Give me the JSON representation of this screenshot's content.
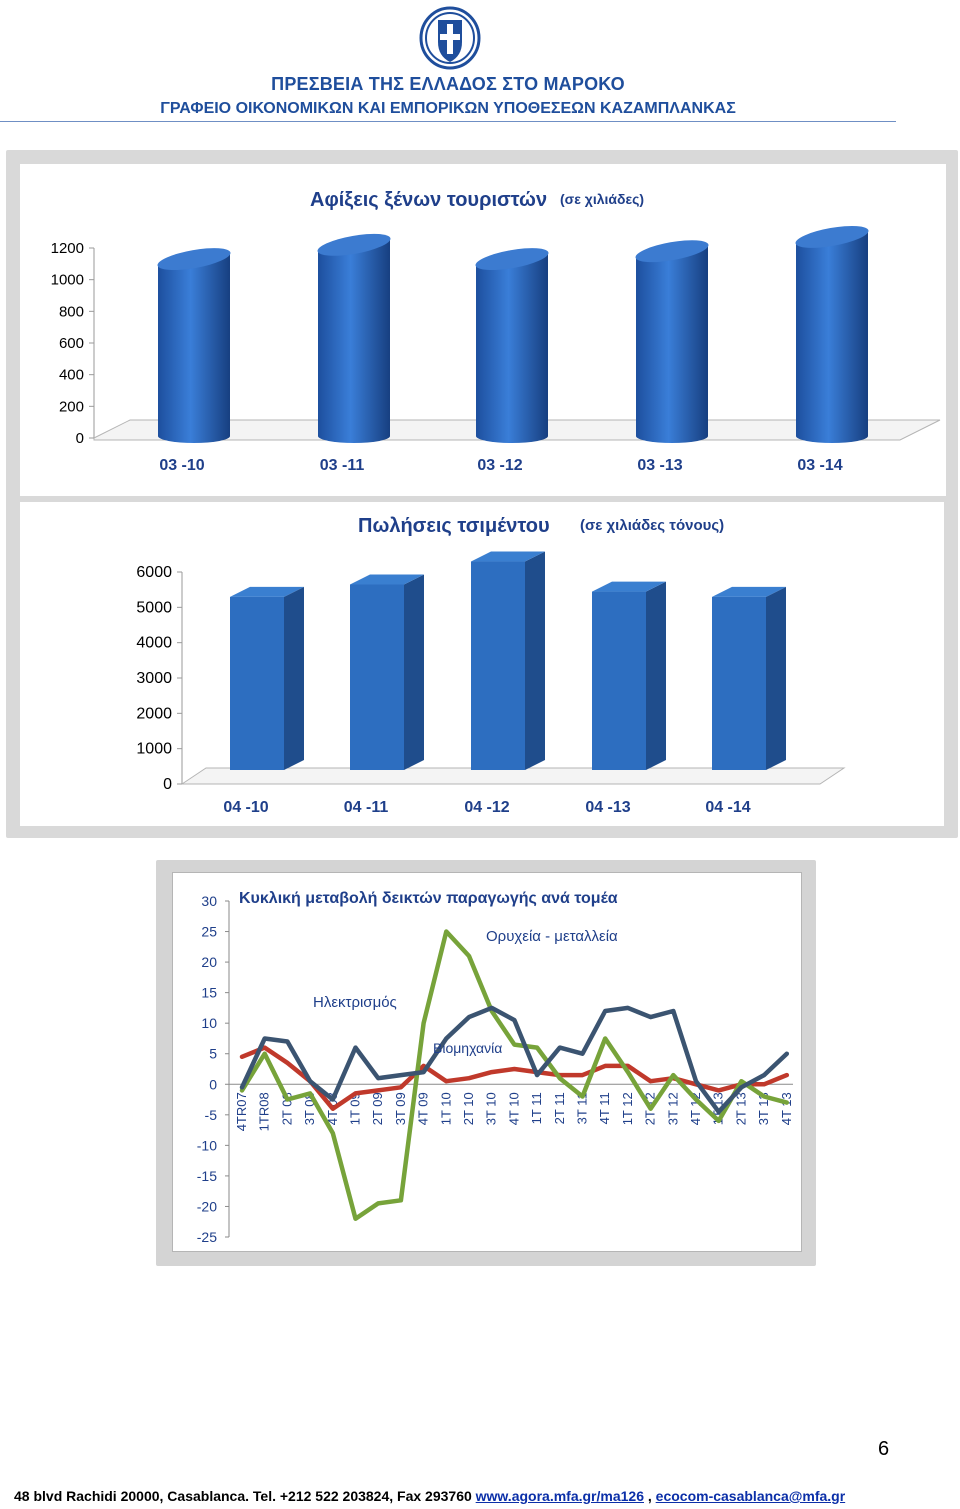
{
  "header": {
    "line1": "ΠΡΕΣΒΕΙΑ ΤΗΣ ΕΛΛΑΔΟΣ ΣΤΟ ΜΑΡΟΚΟ",
    "line2": "ΓΡΑΦΕΙΟ ΟΙΚΟΝΟΜΙΚΩΝ ΚΑΙ ΕΜΠΟΡΙΚΩΝ ΥΠΟΘΕΣΕΩΝ ΚΑΖΑΜΠΛΑΝΚΑΣ",
    "emblem_icon": "greek-coat-of-arms-icon"
  },
  "colors": {
    "header_text": "#1f4e9c",
    "bar_front": "#2d6ec0",
    "bar_side": "#1f4d8c",
    "series_red": "#c0392b",
    "series_green": "#77a33a",
    "series_navy": "#3b5471",
    "link": "#0b2fa8"
  },
  "chart_data": [
    {
      "type": "bar",
      "title": "Αφίξεις ξένων τουριστών",
      "subtitle": "(σε χιλιάδες)",
      "categories": [
        "03 -10",
        "03 -11",
        "03 -12",
        "03 -13",
        "03 -14"
      ],
      "values": [
        1010,
        1100,
        1010,
        1060,
        1150
      ],
      "ylim": [
        0,
        1200
      ],
      "yticks": [
        0,
        200,
        400,
        600,
        800,
        1000,
        1200
      ],
      "grid": false
    },
    {
      "type": "bar",
      "title": "Πωλήσεις τσιμέντου",
      "subtitle": "(σε χιλιάδες τόνους)",
      "categories": [
        "04 -10",
        "04 -11",
        "04 -12",
        "04 -13",
        "04 -14"
      ],
      "values": [
        4900,
        5250,
        5900,
        5050,
        4900
      ],
      "ylim": [
        0,
        6000
      ],
      "yticks": [
        0,
        1000,
        2000,
        3000,
        4000,
        5000,
        6000
      ],
      "grid": false
    },
    {
      "type": "line",
      "title": "Κυκλική μεταβολή δεικτών παραγωγής ανά τομέα",
      "categories": [
        "4TR07",
        "1TR08",
        "2T 08",
        "3T 08",
        "4T 08",
        "1T 09",
        "2T 09",
        "3T 09",
        "4T 09",
        "1T 10",
        "2T 10",
        "3T 10",
        "4T 10",
        "1T 11",
        "2T 11",
        "3T 11",
        "4T 11",
        "1T 12",
        "2T 12",
        "3T 12",
        "4T 12",
        "1T 13",
        "2T 13",
        "3T 13",
        "4T 13"
      ],
      "ylim": [
        -25,
        30
      ],
      "yticks": [
        30,
        25,
        20,
        15,
        10,
        5,
        0,
        -5,
        -10,
        -15,
        -20,
        -25
      ],
      "series": [
        {
          "name": "Βιομηχανία",
          "values": [
            4.5,
            6,
            3.5,
            0.5,
            -4,
            -1.5,
            -1,
            -0.5,
            3,
            0.5,
            1,
            2,
            2.5,
            2,
            1.5,
            1.5,
            3,
            3,
            0.5,
            1,
            0,
            -1,
            0,
            0,
            1.5
          ]
        },
        {
          "name": "Ορυχεία - μεταλλεία",
          "values": [
            -1,
            5,
            -2.5,
            -1.5,
            -8,
            -22,
            -19.5,
            -19,
            10,
            25,
            21,
            12,
            6.5,
            6,
            1,
            -2,
            7.5,
            2,
            -4,
            1.5,
            -2.5,
            -6,
            0.5,
            -2,
            -3
          ]
        },
        {
          "name": "Ηλεκτρισμός",
          "values": [
            -0.5,
            7.5,
            7,
            0.5,
            -2.5,
            6,
            1,
            1.5,
            2,
            7.5,
            11,
            12.5,
            10.5,
            1.5,
            6,
            5,
            12,
            12.5,
            11,
            12,
            0.5,
            -4.5,
            -0.5,
            1.5,
            5
          ]
        }
      ],
      "annotations": [
        "Ορυχεία - μεταλλεία",
        "Ηλεκτρισμός",
        "Βιομηχανία"
      ],
      "grid": false
    }
  ],
  "page_number": "6",
  "footer": {
    "address": "48 blvd Rachidi 20000, Casablanca. Tel. +212 522 203824, Fax 293760",
    "link1": "www.agora.mfa.gr/ma126",
    "separator": " , ",
    "link2": "ecocom-casablanca@mfa.gr"
  }
}
